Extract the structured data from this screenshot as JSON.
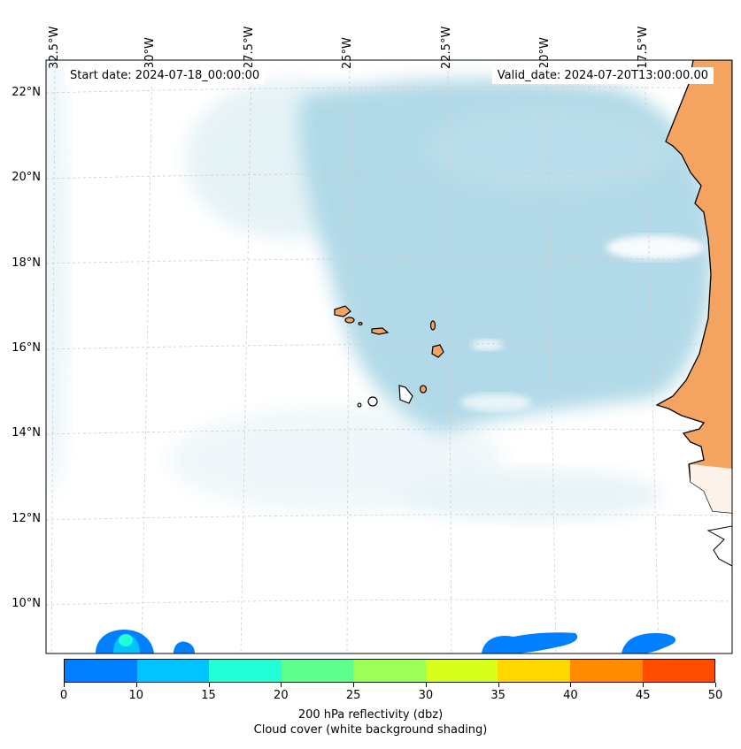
{
  "header": {
    "start_date": "Start date: 2024-07-18_00:00:00",
    "valid_date": "Valid_date: 2024-07-20T13:00:00.00"
  },
  "axes": {
    "lon_labels": [
      "32.5°W",
      "30°W",
      "27.5°W",
      "25°W",
      "22.5°W",
      "20°W",
      "17.5°W"
    ],
    "lat_labels": [
      "22°N",
      "20°N",
      "18°N",
      "16°N",
      "14°N",
      "12°N",
      "10°N"
    ]
  },
  "colorbar": {
    "colors": [
      "#0080ff",
      "#00c3ff",
      "#22ffd6",
      "#5fff8f",
      "#9bff55",
      "#d8ff1c",
      "#ffd800",
      "#ff8c00",
      "#ff4d00"
    ],
    "ticks": [
      "0",
      "10",
      "15",
      "20",
      "25",
      "30",
      "35",
      "40",
      "45",
      "50"
    ],
    "label": "200 hPa reflectivity (dbz)",
    "sublabel": "Cloud cover (white background shading)"
  },
  "colors": {
    "land": "#f4a460",
    "cloud": "#add8e6",
    "reflectivity_low": "#0080ff",
    "reflectivity_mid": "#22ffd6"
  }
}
